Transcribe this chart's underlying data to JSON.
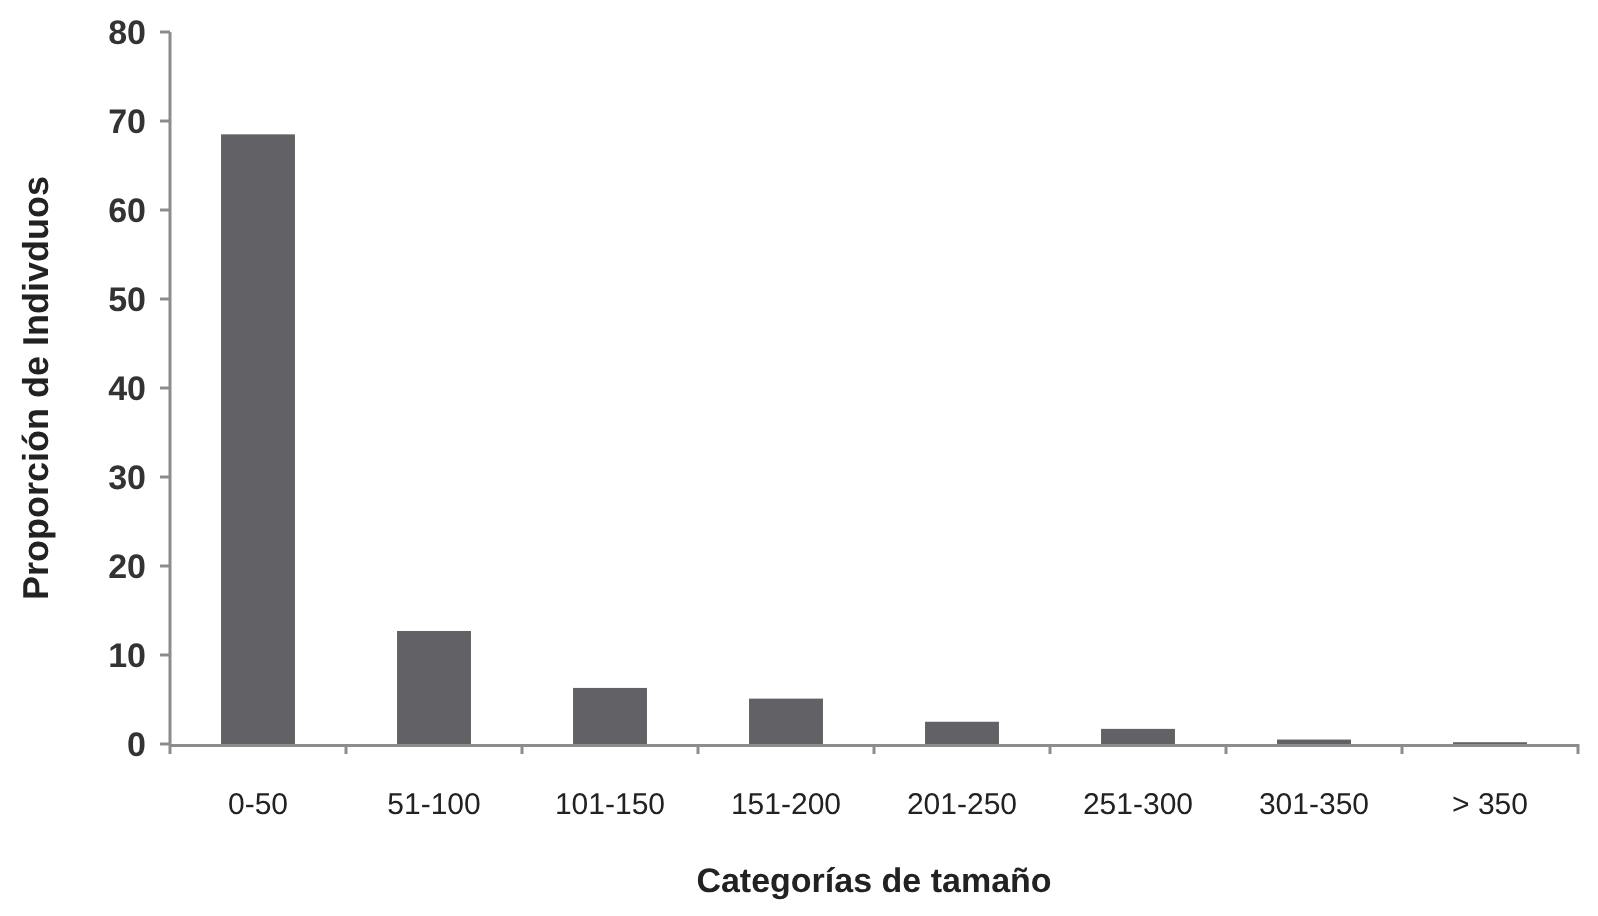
{
  "chart_data": {
    "type": "bar",
    "xlabel": "Categorías de tamaño",
    "ylabel": "Proporción de Indivduos",
    "categories": [
      "0-50",
      "51-100",
      "101-150",
      "151-200",
      "201-250",
      "251-300",
      "301-350",
      "> 350"
    ],
    "values": [
      68.5,
      12.7,
      6.3,
      5.1,
      2.5,
      1.7,
      0.5,
      0.2
    ],
    "color": "#626266",
    "ylim": [
      0,
      80
    ],
    "yticks": [
      0,
      10,
      20,
      30,
      40,
      50,
      60,
      70,
      80
    ],
    "grid": false
  }
}
